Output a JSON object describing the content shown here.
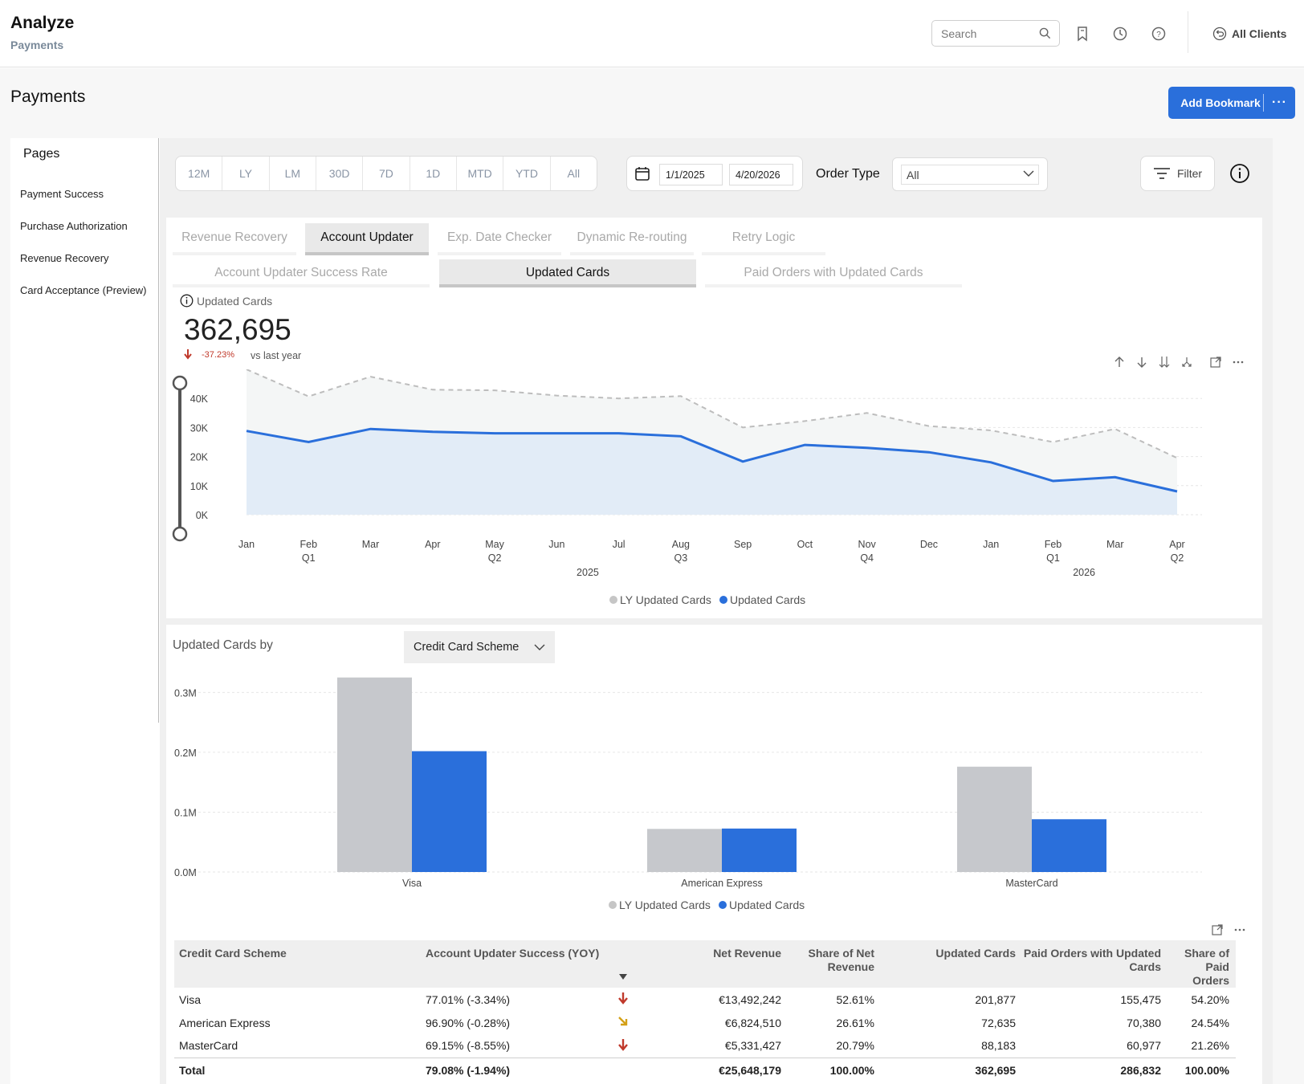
{
  "header": {
    "app_title": "Analyze",
    "app_subtitle": "Payments",
    "search_placeholder": "Search",
    "all_clients": "All Clients"
  },
  "page": {
    "title": "Payments",
    "add_bookmark": "Add Bookmark",
    "more_label": "···"
  },
  "sidebar": {
    "title": "Pages",
    "items": [
      {
        "label": "Payment Success"
      },
      {
        "label": "Purchase Authorization"
      },
      {
        "label": "Revenue Recovery"
      },
      {
        "label": "Card Acceptance (Preview)"
      }
    ]
  },
  "filters": {
    "periods": [
      "12M",
      "LY",
      "LM",
      "30D",
      "7D",
      "1D",
      "MTD",
      "YTD",
      "All"
    ],
    "date_start": "1/1/2025",
    "date_end": "4/20/2026",
    "order_type_label": "Order Type",
    "order_type_value": "All",
    "filter_label": "Filter"
  },
  "tabs": {
    "primary": [
      "Revenue Recovery",
      "Account Updater",
      "Exp. Date Checker",
      "Dynamic Re-routing",
      "Retry Logic"
    ],
    "primary_active": 1,
    "secondary": [
      "Account Updater Success Rate",
      "Updated Cards",
      "Paid Orders with Updated Cards"
    ],
    "secondary_active": 1
  },
  "kpi": {
    "label": "Updated Cards",
    "value": "362,695",
    "delta": "-37.23%",
    "vs": "vs last year"
  },
  "line_chart": {
    "chart_data": {
      "type": "area",
      "x": [
        "Jan",
        "Feb",
        "Mar",
        "Apr",
        "May",
        "Jun",
        "Jul",
        "Aug",
        "Sep",
        "Oct",
        "Nov",
        "Dec",
        "Jan",
        "Feb",
        "Mar",
        "Apr"
      ],
      "quarter_labels": [
        "",
        "Q1",
        "",
        "",
        "Q2",
        "",
        "",
        "Q3",
        "",
        "",
        "Q4",
        "",
        "",
        "Q1",
        "",
        "Q2"
      ],
      "year_labels": [
        {
          "label": "2025",
          "at": 5.5
        },
        {
          "label": "2026",
          "at": 13.5
        }
      ],
      "y_ticks": [
        "0K",
        "10K",
        "20K",
        "30K",
        "40K"
      ],
      "ylim": [
        0,
        50000
      ],
      "series": [
        {
          "name": "LY Updated Cards",
          "color": "#b9b9b9",
          "values": [
            50000,
            40700,
            47500,
            43000,
            42800,
            41000,
            40000,
            40800,
            30000,
            32200,
            35000,
            30500,
            29000,
            25000,
            29500,
            19500
          ]
        },
        {
          "name": "Updated Cards",
          "color": "#2a6fdb",
          "values": [
            28800,
            25000,
            29500,
            28500,
            28000,
            28000,
            28000,
            27000,
            18300,
            24000,
            23000,
            21500,
            18000,
            11600,
            12900,
            8000
          ]
        }
      ]
    }
  },
  "bar_section": {
    "label": "Updated Cards by",
    "dimension": "Credit Card Scheme"
  },
  "bar_chart": {
    "chart_data": {
      "type": "bar",
      "categories": [
        "Visa",
        "American Express",
        "MasterCard"
      ],
      "y_ticks": [
        "0.0M",
        "0.1M",
        "0.2M",
        "0.3M"
      ],
      "ylim": [
        0,
        330000
      ],
      "series": [
        {
          "name": "LY Updated Cards",
          "color": "#c6c8cc",
          "values": [
            325000,
            72000,
            176000
          ]
        },
        {
          "name": "Updated Cards",
          "color": "#2a6fdb",
          "values": [
            201877,
            72635,
            88183
          ]
        }
      ]
    }
  },
  "table": {
    "headers": [
      "Credit Card Scheme",
      "Account Updater Success (YOY)",
      "Net Revenue",
      "Share of Net Revenue",
      "Updated Cards",
      "Paid Orders with Updated Cards",
      "Share of Paid Orders"
    ],
    "rows": [
      {
        "scheme": "Visa",
        "success": "77.01% (-3.34%)",
        "trend": "down",
        "net_revenue": "€13,492,242",
        "share_rev": "52.61%",
        "updated": "201,877",
        "paid": "155,475",
        "share_paid": "54.20%"
      },
      {
        "scheme": "American Express",
        "success": "96.90% (-0.28%)",
        "trend": "down-right",
        "net_revenue": "€6,824,510",
        "share_rev": "26.61%",
        "updated": "72,635",
        "paid": "70,380",
        "share_paid": "24.54%"
      },
      {
        "scheme": "MasterCard",
        "success": "69.15% (-8.55%)",
        "trend": "down",
        "net_revenue": "€5,331,427",
        "share_rev": "20.79%",
        "updated": "88,183",
        "paid": "60,977",
        "share_paid": "21.26%"
      }
    ],
    "total": {
      "scheme": "Total",
      "success": "79.08% (-1.94%)",
      "net_revenue": "€25,648,179",
      "share_rev": "100.00%",
      "updated": "362,695",
      "paid": "286,832",
      "share_paid": "100.00%"
    }
  },
  "colors": {
    "accent": "#2a6fdb",
    "negative": "#c0392b",
    "warning": "#d4a017"
  }
}
